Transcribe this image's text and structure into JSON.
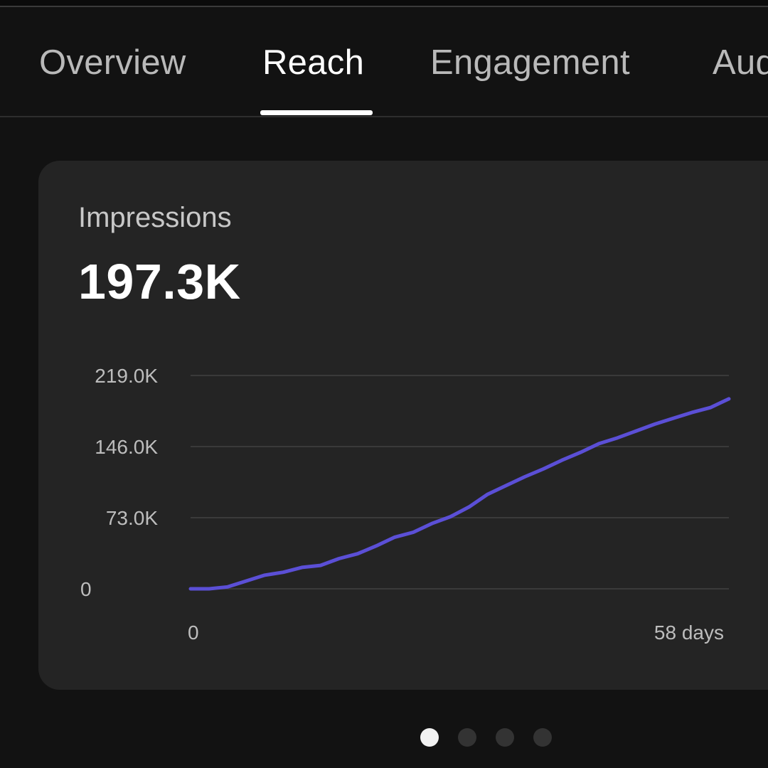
{
  "tabs": [
    {
      "label": "Overview",
      "active": false
    },
    {
      "label": "Reach",
      "active": true
    },
    {
      "label": "Engagement",
      "active": false
    },
    {
      "label": "Audience",
      "active": false
    }
  ],
  "card": {
    "title": "Impressions",
    "value": "197.3K"
  },
  "chart_data": {
    "type": "line",
    "x_tick_labels": [
      "0",
      "58 days"
    ],
    "y_tick_labels": [
      "219.0K",
      "146.0K",
      "73.0K",
      "0"
    ],
    "y_tick_values": [
      219000,
      146000,
      73000,
      0
    ],
    "xlim": [
      0,
      58
    ],
    "ylim": [
      0,
      219000
    ],
    "grid": true,
    "line_color": "#5b4fd6",
    "series": [
      {
        "x": [
          0,
          2,
          4,
          6,
          8,
          10,
          12,
          14,
          16,
          18,
          20,
          22,
          24,
          26,
          28,
          30,
          32,
          34,
          36,
          38,
          40,
          42,
          44,
          46,
          48,
          50,
          52,
          54,
          56,
          58
        ],
        "values": [
          0,
          0,
          2000,
          8000,
          14000,
          17000,
          22000,
          24000,
          31000,
          36000,
          44000,
          53000,
          58000,
          67000,
          74000,
          84000,
          97000,
          106000,
          115000,
          123000,
          132000,
          140000,
          149000,
          155000,
          162000,
          169000,
          175000,
          181000,
          186000,
          195000
        ]
      }
    ]
  },
  "pager": {
    "count": 4,
    "active_index": 0
  }
}
